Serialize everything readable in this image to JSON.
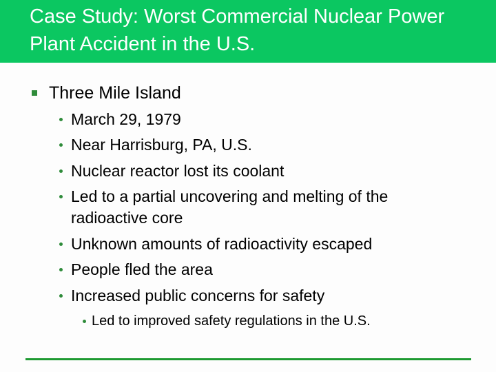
{
  "title": "Case Study: Worst Commercial Nuclear Power Plant Accident in the U.S.",
  "colors": {
    "header": "#0bc761",
    "bullet": "#2e8b3a",
    "rule": "#1e9a32"
  },
  "main_bullet": "Three Mile Island",
  "sub_bullets": [
    "March 29, 1979",
    "Near Harrisburg, PA, U.S.",
    "Nuclear reactor lost its coolant",
    "Led to a partial uncovering and melting of the radioactive core",
    "Unknown amounts of radioactivity escaped",
    "People fled the area",
    "Increased public concerns for safety"
  ],
  "sub_sub_bullet": "Led to improved safety regulations in the U.S."
}
